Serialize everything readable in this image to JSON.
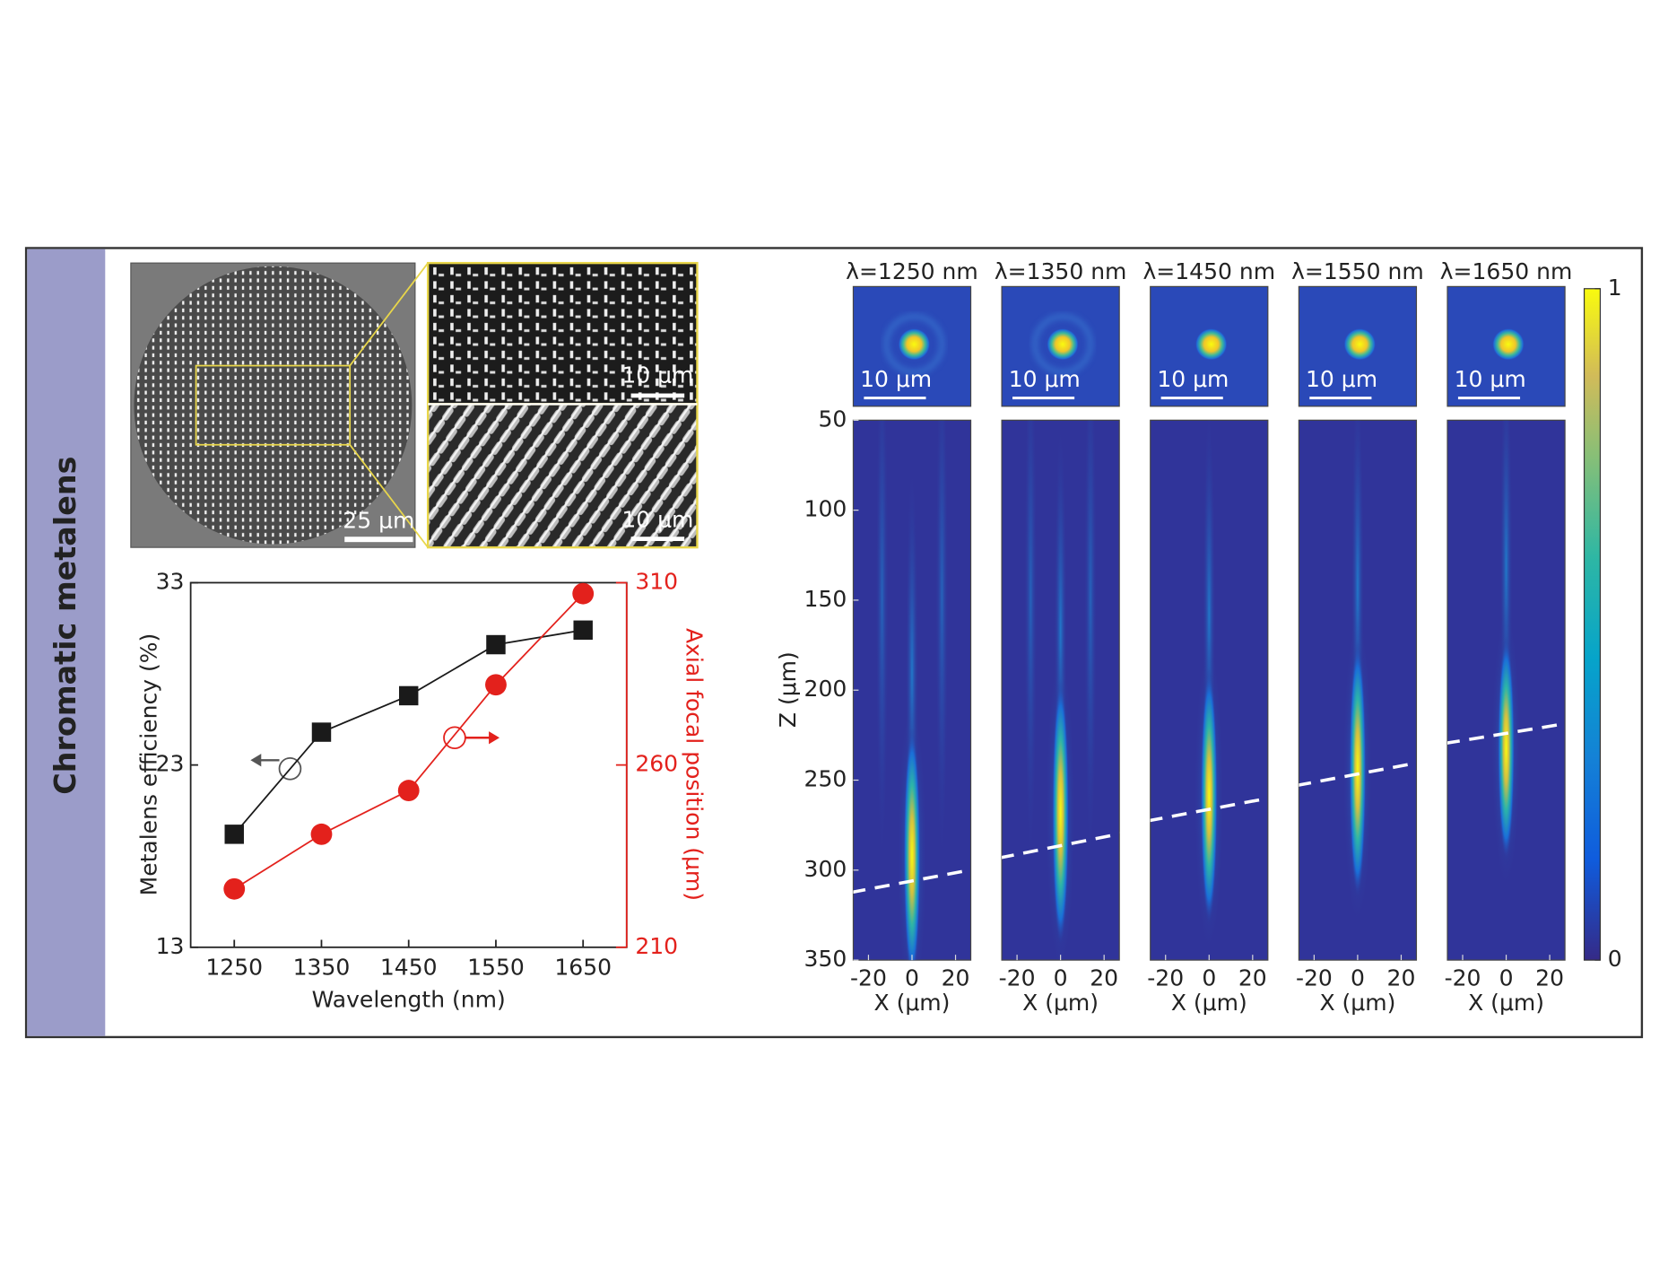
{
  "side_label": "Chromatic metalens",
  "sem": {
    "scale_bars": [
      "25 μm",
      "10 μm",
      "10 μm"
    ]
  },
  "chart_data": {
    "type": "line",
    "x_label": "Wavelength (nm)",
    "y_label": "Metalens efficiency (%)",
    "y2_label": "Axial focal position (μm)",
    "x": [
      1250,
      1350,
      1450,
      1550,
      1650
    ],
    "xlim": [
      1200,
      1700
    ],
    "xticks": [
      1250,
      1350,
      1450,
      1550,
      1650
    ],
    "ylim": [
      13,
      33
    ],
    "yticks": [
      13,
      23,
      33
    ],
    "y2lim": [
      210,
      310
    ],
    "y2ticks": [
      210,
      260,
      310
    ],
    "series": [
      {
        "color": "#1a1a1a",
        "marker": "square",
        "values": [
          19.2,
          24.8,
          26.8,
          29.6,
          30.4
        ]
      },
      {
        "color": "#e3211c",
        "marker": "circle",
        "axis": "y2",
        "values": [
          226,
          241,
          253,
          282,
          307
        ]
      }
    ]
  },
  "field_maps": {
    "panels": [
      {
        "title": "λ=1250 nm",
        "scale_bar": "10 μm"
      },
      {
        "title": "λ=1350 nm",
        "scale_bar": "10 μm"
      },
      {
        "title": "λ=1450 nm",
        "scale_bar": "10 μm"
      },
      {
        "title": "λ=1550 nm",
        "scale_bar": "10 μm"
      },
      {
        "title": "λ=1650 nm",
        "scale_bar": "10 μm"
      }
    ],
    "z_label": "Z (μm)",
    "x_label": "X (μm)",
    "zlim": [
      50,
      350
    ],
    "zticks": [
      50,
      100,
      150,
      200,
      250,
      300,
      350
    ],
    "xlim": [
      -27,
      27
    ],
    "xticks": [
      -20,
      0,
      20
    ],
    "colorbar": {
      "lim": [
        0,
        1
      ],
      "ticks": [
        0,
        1
      ]
    }
  }
}
